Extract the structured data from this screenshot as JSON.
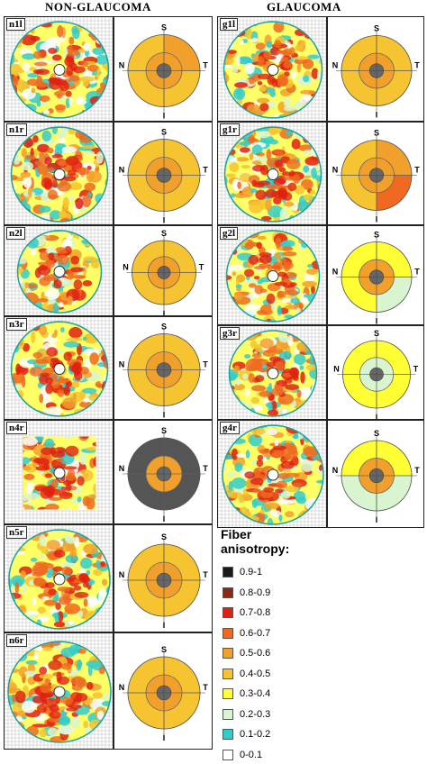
{
  "headers": {
    "left": "NON-GLAUCOMA",
    "right": "GLAUCOMA"
  },
  "legend": {
    "title_line1": "Fiber",
    "title_line2": "anisotropy:",
    "items": [
      {
        "label": "0.9-1",
        "color": "#1a1a1a"
      },
      {
        "label": "0.8-0.9",
        "color": "#8b2a10"
      },
      {
        "label": "0.7-0.8",
        "color": "#e02010"
      },
      {
        "label": "0.6-0.7",
        "color": "#ef6a20"
      },
      {
        "label": "0.5-0.6",
        "color": "#f2a02c"
      },
      {
        "label": "0.4-0.5",
        "color": "#f5c430"
      },
      {
        "label": "0.3-0.4",
        "color": "#ffff33"
      },
      {
        "label": "0.2-0.3",
        "color": "#d9f5d0"
      },
      {
        "label": "0.1-0.2",
        "color": "#33cccc"
      },
      {
        "label": "0-0.1",
        "color": "#ffffff"
      }
    ]
  },
  "orientation": {
    "superior": "S",
    "inferior": "I",
    "nasal": "N",
    "temporal": "T"
  },
  "panels": [
    {
      "id": "n1l",
      "group": "non-glaucoma",
      "outer": [
        "#f5c430",
        "#f2a02c",
        "#f5c430",
        "#f5c430"
      ],
      "inner": "#f2a02c"
    },
    {
      "id": "n1r",
      "group": "non-glaucoma",
      "outer": [
        "#f5c430",
        "#f5c430",
        "#f5c430",
        "#f5c430"
      ],
      "inner": "#f2a02c"
    },
    {
      "id": "n2l",
      "group": "non-glaucoma",
      "outer": [
        "#f5c430",
        "#f5c430",
        "#f5c430",
        "#f5c430"
      ],
      "inner": "#f2a02c"
    },
    {
      "id": "n3r",
      "group": "non-glaucoma",
      "outer": [
        "#f5c430",
        "#f5c430",
        "#f5c430",
        "#f5c430"
      ],
      "inner": "#f2a02c"
    },
    {
      "id": "n4r",
      "group": "non-glaucoma",
      "outer": [
        "#555555",
        "#555555",
        "#555555",
        "#555555"
      ],
      "inner": "#f2a02c"
    },
    {
      "id": "n5r",
      "group": "non-glaucoma",
      "outer": [
        "#f5c430",
        "#f5c430",
        "#f5c430",
        "#f5c430"
      ],
      "inner": "#f2a02c"
    },
    {
      "id": "n6r",
      "group": "non-glaucoma",
      "outer": [
        "#f5c430",
        "#f5c430",
        "#f5c430",
        "#f5c430"
      ],
      "inner": "#f2a02c"
    },
    {
      "id": "g1l",
      "group": "glaucoma",
      "outer": [
        "#f5c430",
        "#f5c430",
        "#f5c430",
        "#f5c430"
      ],
      "inner": "#f2a02c"
    },
    {
      "id": "g1r",
      "group": "glaucoma",
      "outer": [
        "#f5c430",
        "#f2a02c",
        "#ef6a20",
        "#f5c430"
      ],
      "inner": "#f2a02c"
    },
    {
      "id": "g2l",
      "group": "glaucoma",
      "outer": [
        "#ffff33",
        "#ffff33",
        "#d9f5d0",
        "#ffff33"
      ],
      "inner": "#f2a02c"
    },
    {
      "id": "g3r",
      "group": "glaucoma",
      "outer": [
        "#ffff33",
        "#ffff33",
        "#ffff33",
        "#ffff33"
      ],
      "inner": "#d9f5d0"
    },
    {
      "id": "g4r",
      "group": "glaucoma",
      "outer": [
        "#ffff33",
        "#ffff33",
        "#d9f5d0",
        "#d9f5d0"
      ],
      "inner": "#f2a02c"
    }
  ]
}
